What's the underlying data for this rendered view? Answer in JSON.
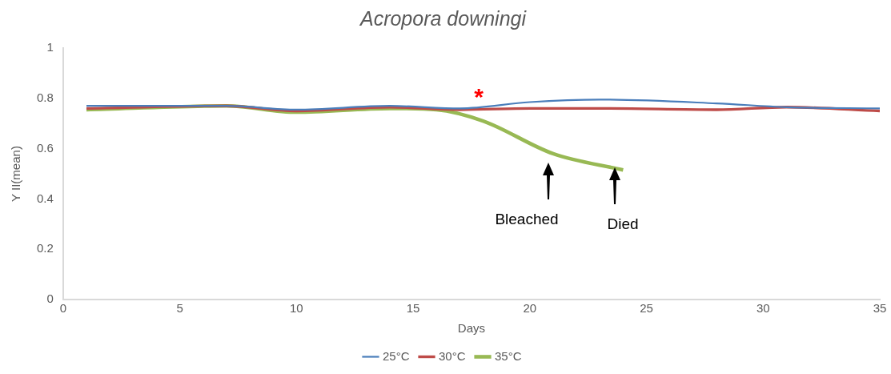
{
  "chart_data": {
    "type": "line",
    "title": "Acropora downingi",
    "xlabel": "Days",
    "ylabel": "Y II(mean)",
    "xlim": [
      0,
      35
    ],
    "xticks": [
      0,
      5,
      10,
      15,
      20,
      25,
      30,
      35
    ],
    "ylim": [
      0,
      1
    ],
    "yticks": [
      0,
      0.2,
      0.4,
      0.6,
      0.8,
      1
    ],
    "grid": false,
    "legend": "bottom",
    "marker": "none",
    "line_style": "solid",
    "series": [
      {
        "name": "25°C",
        "color": "#4a7ebb",
        "x": [
          1,
          7,
          10,
          14,
          17,
          20,
          23,
          28,
          31,
          35
        ],
        "values": [
          0.77,
          0.77,
          0.755,
          0.77,
          0.76,
          0.785,
          0.795,
          0.78,
          0.765,
          0.76
        ]
      },
      {
        "name": "30°C",
        "color": "#be4b48",
        "x": [
          1,
          7,
          10,
          14,
          17,
          20,
          23,
          28,
          31,
          35
        ],
        "values": [
          0.76,
          0.77,
          0.75,
          0.765,
          0.755,
          0.76,
          0.76,
          0.755,
          0.765,
          0.75
        ]
      },
      {
        "name": "35°C",
        "color": "#98b954",
        "x": [
          1,
          7,
          10,
          14,
          16,
          18,
          21,
          24
        ],
        "values": [
          0.755,
          0.77,
          0.745,
          0.76,
          0.755,
          0.71,
          0.58,
          0.515
        ]
      }
    ],
    "annotations": [
      "*",
      "Bleached",
      "Died"
    ]
  }
}
